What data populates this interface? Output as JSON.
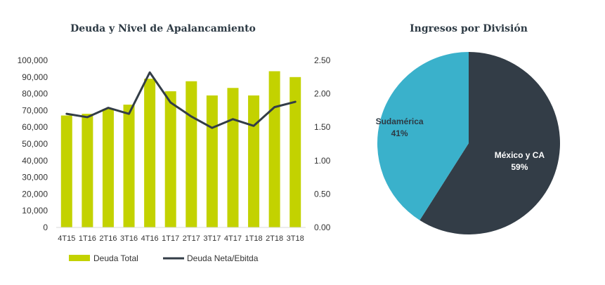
{
  "chart_data": [
    {
      "type": "bar",
      "title": "Deuda y Nivel de Apalancamiento",
      "categories": [
        "4T15",
        "1T16",
        "2T16",
        "3T16",
        "4T16",
        "1T17",
        "2T17",
        "3T17",
        "4T17",
        "1T18",
        "2T18",
        "3T18"
      ],
      "series": [
        {
          "name": "Deuda Total",
          "kind": "bar",
          "axis": "left",
          "color": "#c3d200",
          "values": [
            67000,
            68000,
            71000,
            73500,
            89000,
            81500,
            87500,
            79000,
            83500,
            79000,
            93500,
            90000
          ]
        },
        {
          "name": "Deuda Neta/Ebitda",
          "kind": "line",
          "axis": "right",
          "color": "#333d47",
          "values": [
            1.7,
            1.65,
            1.79,
            1.7,
            2.32,
            1.87,
            1.66,
            1.49,
            1.62,
            1.52,
            1.8,
            1.88
          ]
        }
      ],
      "y_left": {
        "ylim": [
          0,
          100000
        ],
        "ticks": [
          "0",
          "10,000",
          "20,000",
          "30,000",
          "40,000",
          "50,000",
          "60,000",
          "70,000",
          "80,000",
          "90,000",
          "100,000"
        ]
      },
      "y_right": {
        "ylim": [
          0,
          2.5
        ],
        "ticks": [
          "0.00",
          "0.50",
          "1.00",
          "1.50",
          "2.00",
          "2.50"
        ]
      },
      "legend_position": "bottom",
      "grid": false
    },
    {
      "type": "pie",
      "title": "Ingresos por División",
      "slices": [
        {
          "label": "México y CA",
          "value": 59,
          "value_label": "59%",
          "color": "#333d47",
          "text_color": "#ffffff"
        },
        {
          "label": "Sudamérica",
          "value": 41,
          "value_label": "41%",
          "color": "#3ab1cb",
          "text_color": "#2d3a44"
        }
      ]
    }
  ]
}
